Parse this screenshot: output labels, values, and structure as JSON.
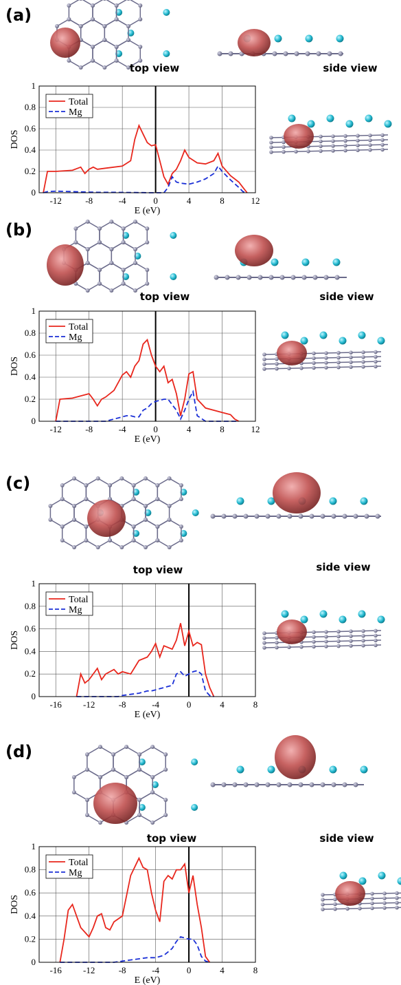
{
  "panels": [
    {
      "label": "(a)",
      "top_view": "top view",
      "side_view": "side view"
    },
    {
      "label": "(b)",
      "top_view": "top view",
      "side_view": "side view"
    },
    {
      "label": "(c)",
      "top_view": "top view",
      "side_view": "side view"
    },
    {
      "label": "(d)",
      "top_view": "top view",
      "side_view": "side view"
    }
  ],
  "chart_data": [
    {
      "type": "line",
      "x_label": "E (eV)",
      "y_label": "DOS",
      "xlim": [
        -14,
        12
      ],
      "ylim": [
        0,
        1
      ],
      "xticks": [
        -12,
        -8,
        -4,
        0,
        4,
        8,
        12
      ],
      "yticks": [
        0,
        0.2,
        0.4,
        0.6,
        0.8,
        1
      ],
      "grid": true,
      "legend": "upper left",
      "vline": 0,
      "x": [
        -13.5,
        -13,
        -12,
        -10,
        -9,
        -8.5,
        -8,
        -7.5,
        -7,
        -6,
        -4,
        -3,
        -2.5,
        -2,
        -1.5,
        -1,
        -0.5,
        0,
        0.5,
        1,
        1.5,
        2,
        2.5,
        3,
        3.5,
        4,
        5,
        6,
        7,
        7.5,
        8,
        9,
        10,
        10.5,
        11
      ],
      "series": [
        {
          "name": "Total",
          "color": "#e8261c",
          "linestyle": "solid",
          "values": [
            0,
            0.2,
            0.2,
            0.21,
            0.24,
            0.18,
            0.22,
            0.24,
            0.22,
            0.23,
            0.25,
            0.3,
            0.5,
            0.63,
            0.55,
            0.47,
            0.44,
            0.45,
            0.3,
            0.15,
            0.08,
            0.18,
            0.22,
            0.3,
            0.4,
            0.33,
            0.28,
            0.27,
            0.3,
            0.37,
            0.25,
            0.16,
            0.1,
            0.05,
            0
          ]
        },
        {
          "name": "Mg",
          "color": "#1a2fd6",
          "linestyle": "dashed",
          "values": [
            0,
            0.01,
            0.015,
            0.01,
            0.008,
            0.007,
            0.005,
            0.005,
            0.004,
            0.004,
            0.003,
            0.002,
            0.002,
            0.001,
            0.001,
            0,
            0,
            0,
            0,
            0,
            0.05,
            0.15,
            0.1,
            0.09,
            0.085,
            0.08,
            0.1,
            0.13,
            0.18,
            0.25,
            0.2,
            0.12,
            0.05,
            0.01,
            0
          ]
        }
      ]
    },
    {
      "type": "line",
      "x_label": "E (eV)",
      "y_label": "DOS",
      "xlim": [
        -14,
        12
      ],
      "ylim": [
        0,
        1
      ],
      "xticks": [
        -12,
        -8,
        -4,
        0,
        4,
        8,
        12
      ],
      "yticks": [
        0,
        0.2,
        0.4,
        0.6,
        0.8,
        1
      ],
      "grid": true,
      "legend": "upper left",
      "vline": 0,
      "x": [
        -12,
        -11.5,
        -10,
        -8,
        -7.5,
        -7,
        -6.5,
        -6,
        -5,
        -4,
        -3.5,
        -3,
        -2.5,
        -2,
        -1.5,
        -1,
        -0.5,
        0,
        0.5,
        1,
        1.5,
        2,
        2.5,
        3,
        3.5,
        4,
        4.5,
        5,
        6,
        8,
        9,
        9.5,
        10
      ],
      "series": [
        {
          "name": "Total",
          "color": "#e8261c",
          "linestyle": "solid",
          "values": [
            0,
            0.2,
            0.21,
            0.25,
            0.2,
            0.14,
            0.2,
            0.22,
            0.28,
            0.42,
            0.45,
            0.4,
            0.5,
            0.55,
            0.7,
            0.74,
            0.6,
            0.5,
            0.45,
            0.5,
            0.35,
            0.38,
            0.25,
            0.05,
            0.2,
            0.43,
            0.45,
            0.2,
            0.12,
            0.08,
            0.06,
            0.02,
            0
          ]
        },
        {
          "name": "Mg",
          "color": "#1a2fd6",
          "linestyle": "dashed",
          "values": [
            0,
            0,
            0,
            0,
            0,
            0,
            0,
            0,
            0.02,
            0.04,
            0.05,
            0.05,
            0.04,
            0.04,
            0.1,
            0.12,
            0.16,
            0.18,
            0.19,
            0.2,
            0.2,
            0.15,
            0.1,
            0.02,
            0.1,
            0.2,
            0.27,
            0.05,
            0,
            0,
            0,
            0,
            0
          ]
        }
      ]
    },
    {
      "type": "line",
      "x_label": "E (eV)",
      "y_label": "DOS",
      "xlim": [
        -18,
        8
      ],
      "ylim": [
        0,
        1
      ],
      "xticks": [
        -16,
        -12,
        -8,
        -4,
        0,
        4,
        8
      ],
      "yticks": [
        0,
        0.2,
        0.4,
        0.6,
        0.8,
        1
      ],
      "grid": true,
      "legend": "upper left",
      "vline": 0,
      "x": [
        -13.5,
        -13,
        -12.5,
        -12,
        -11,
        -10.5,
        -10,
        -9,
        -8.5,
        -8,
        -7,
        -6,
        -5,
        -4.5,
        -4,
        -3.5,
        -3,
        -2,
        -1.5,
        -1,
        -0.5,
        0,
        0.5,
        1,
        1.5,
        2,
        2.5,
        3
      ],
      "series": [
        {
          "name": "Total",
          "color": "#e8261c",
          "linestyle": "solid",
          "values": [
            0,
            0.2,
            0.12,
            0.15,
            0.25,
            0.15,
            0.2,
            0.24,
            0.2,
            0.22,
            0.2,
            0.32,
            0.35,
            0.4,
            0.47,
            0.35,
            0.45,
            0.42,
            0.5,
            0.65,
            0.45,
            0.58,
            0.45,
            0.48,
            0.46,
            0.2,
            0.08,
            0
          ]
        },
        {
          "name": "Mg",
          "color": "#1a2fd6",
          "linestyle": "dashed",
          "values": [
            0,
            0,
            0,
            0,
            0,
            0,
            0,
            0,
            0,
            0.01,
            0.02,
            0.03,
            0.05,
            0.05,
            0.06,
            0.07,
            0.08,
            0.1,
            0.2,
            0.22,
            0.18,
            0.2,
            0.22,
            0.23,
            0.2,
            0.05,
            0.01,
            0
          ]
        }
      ]
    },
    {
      "type": "line",
      "x_label": "E (eV)",
      "y_label": "DOS",
      "xlim": [
        -18,
        8
      ],
      "ylim": [
        0,
        1
      ],
      "xticks": [
        -16,
        -12,
        -8,
        -4,
        0,
        4,
        8
      ],
      "yticks": [
        0,
        0.2,
        0.4,
        0.6,
        0.8,
        1
      ],
      "grid": true,
      "legend": "upper left",
      "vline": 0,
      "x": [
        -15.5,
        -15,
        -14.5,
        -14,
        -13.5,
        -13,
        -12,
        -11.5,
        -11,
        -10.5,
        -10,
        -9.5,
        -9,
        -8,
        -7,
        -6,
        -5.5,
        -5,
        -4.5,
        -4,
        -3.5,
        -3,
        -2.5,
        -2,
        -1.5,
        -1,
        -0.5,
        0,
        0.5,
        1,
        1.5,
        2,
        2.5
      ],
      "series": [
        {
          "name": "Total",
          "color": "#e8261c",
          "linestyle": "solid",
          "values": [
            0,
            0.2,
            0.45,
            0.5,
            0.4,
            0.3,
            0.22,
            0.3,
            0.4,
            0.42,
            0.3,
            0.28,
            0.35,
            0.4,
            0.75,
            0.9,
            0.82,
            0.8,
            0.6,
            0.45,
            0.35,
            0.7,
            0.75,
            0.72,
            0.8,
            0.8,
            0.85,
            0.6,
            0.75,
            0.5,
            0.3,
            0.05,
            0
          ]
        },
        {
          "name": "Mg",
          "color": "#1a2fd6",
          "linestyle": "dashed",
          "values": [
            0,
            0,
            0,
            0,
            0,
            0,
            0,
            0,
            0,
            0,
            0,
            0,
            0,
            0.01,
            0.02,
            0.03,
            0.035,
            0.04,
            0.04,
            0.04,
            0.05,
            0.06,
            0.09,
            0.12,
            0.18,
            0.22,
            0.21,
            0.2,
            0.2,
            0.15,
            0.05,
            0.01,
            0
          ]
        }
      ]
    }
  ]
}
